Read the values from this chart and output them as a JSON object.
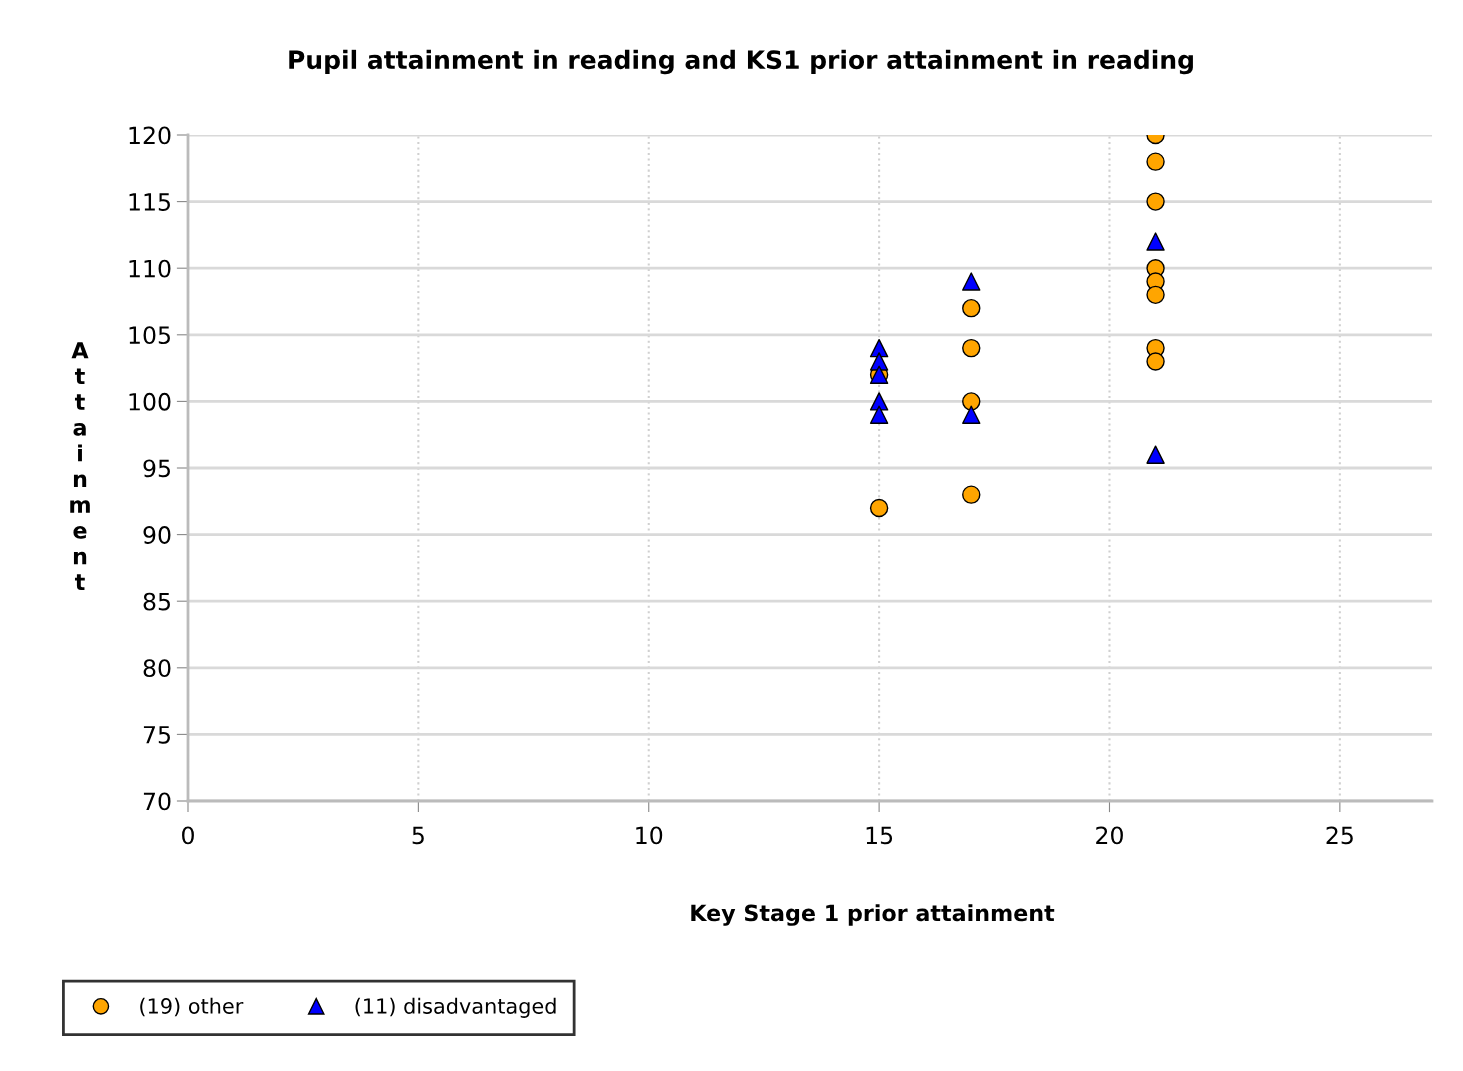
{
  "chart_data": {
    "type": "scatter",
    "title": "Pupil attainment in reading and KS1 prior attainment in reading",
    "xlabel": "Key Stage 1 prior attainment",
    "ylabel": "Attainment",
    "xlim": [
      0,
      27
    ],
    "xticks": [
      0,
      5,
      10,
      15,
      20,
      25
    ],
    "ylim": [
      70,
      120
    ],
    "yticks": [
      70,
      75,
      80,
      85,
      90,
      95,
      100,
      105,
      110,
      115,
      120
    ],
    "grid": true,
    "legend": "bottom left",
    "series": [
      {
        "name": "(19) other",
        "color": "#ffa500",
        "marker": "circle",
        "x": [
          15,
          15,
          17,
          17,
          17,
          17,
          21,
          21,
          21,
          21,
          21,
          21,
          21,
          21
        ],
        "values": [
          102,
          92,
          107,
          104,
          100,
          93,
          120,
          118,
          115,
          110,
          109,
          108,
          104,
          103
        ]
      },
      {
        "name": "(11) disadvantaged",
        "color": "#0000ff",
        "marker": "triangle",
        "x": [
          15,
          15,
          15,
          15,
          15,
          17,
          17,
          21,
          21
        ],
        "values": [
          104,
          103,
          102,
          100,
          99,
          109,
          99,
          112,
          96
        ]
      }
    ]
  }
}
